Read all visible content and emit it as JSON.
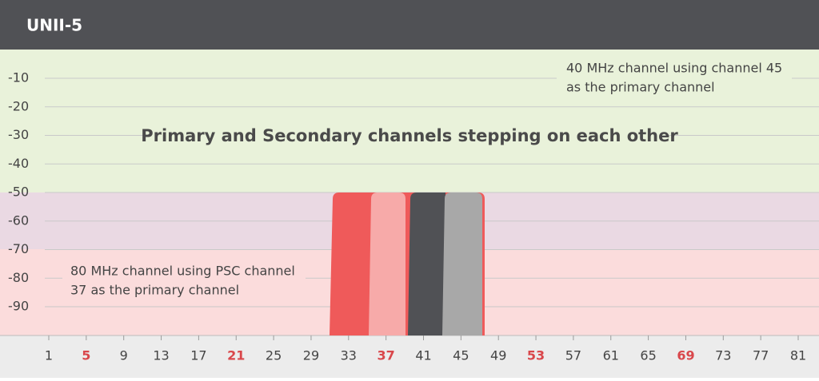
{
  "header": {
    "title": "UNII-5"
  },
  "title": "Primary and Secondary channels stepping on each other",
  "annotations": [
    {
      "lines": [
        "40 MHz channel using channel 45",
        "as the primary channel"
      ]
    },
    {
      "lines": [
        "80 MHz channel using PSC channel",
        "37 as the primary channel"
      ]
    }
  ],
  "y_axis": {
    "labels": [
      "-10",
      "-20",
      "-30",
      "-40",
      "-50",
      "-60",
      "-70",
      "-80",
      "-90"
    ]
  },
  "x_axis": {
    "channels": [
      {
        "label": "1"
      },
      {
        "label": "5",
        "color": "#d9474b"
      },
      {
        "label": "9"
      },
      {
        "label": "13"
      },
      {
        "label": "17"
      },
      {
        "label": "21",
        "color": "#d9474b"
      },
      {
        "label": "25"
      },
      {
        "label": "29"
      },
      {
        "label": "33"
      },
      {
        "label": "37",
        "color": "#d9474b"
      },
      {
        "label": "41"
      },
      {
        "label": "45"
      },
      {
        "label": "49"
      },
      {
        "label": "53",
        "color": "#d9474b"
      },
      {
        "label": "57"
      },
      {
        "label": "61"
      },
      {
        "label": "65"
      },
      {
        "label": "69",
        "color": "#d9474b"
      },
      {
        "label": "73"
      },
      {
        "label": "77"
      },
      {
        "label": "81"
      }
    ]
  }
}
